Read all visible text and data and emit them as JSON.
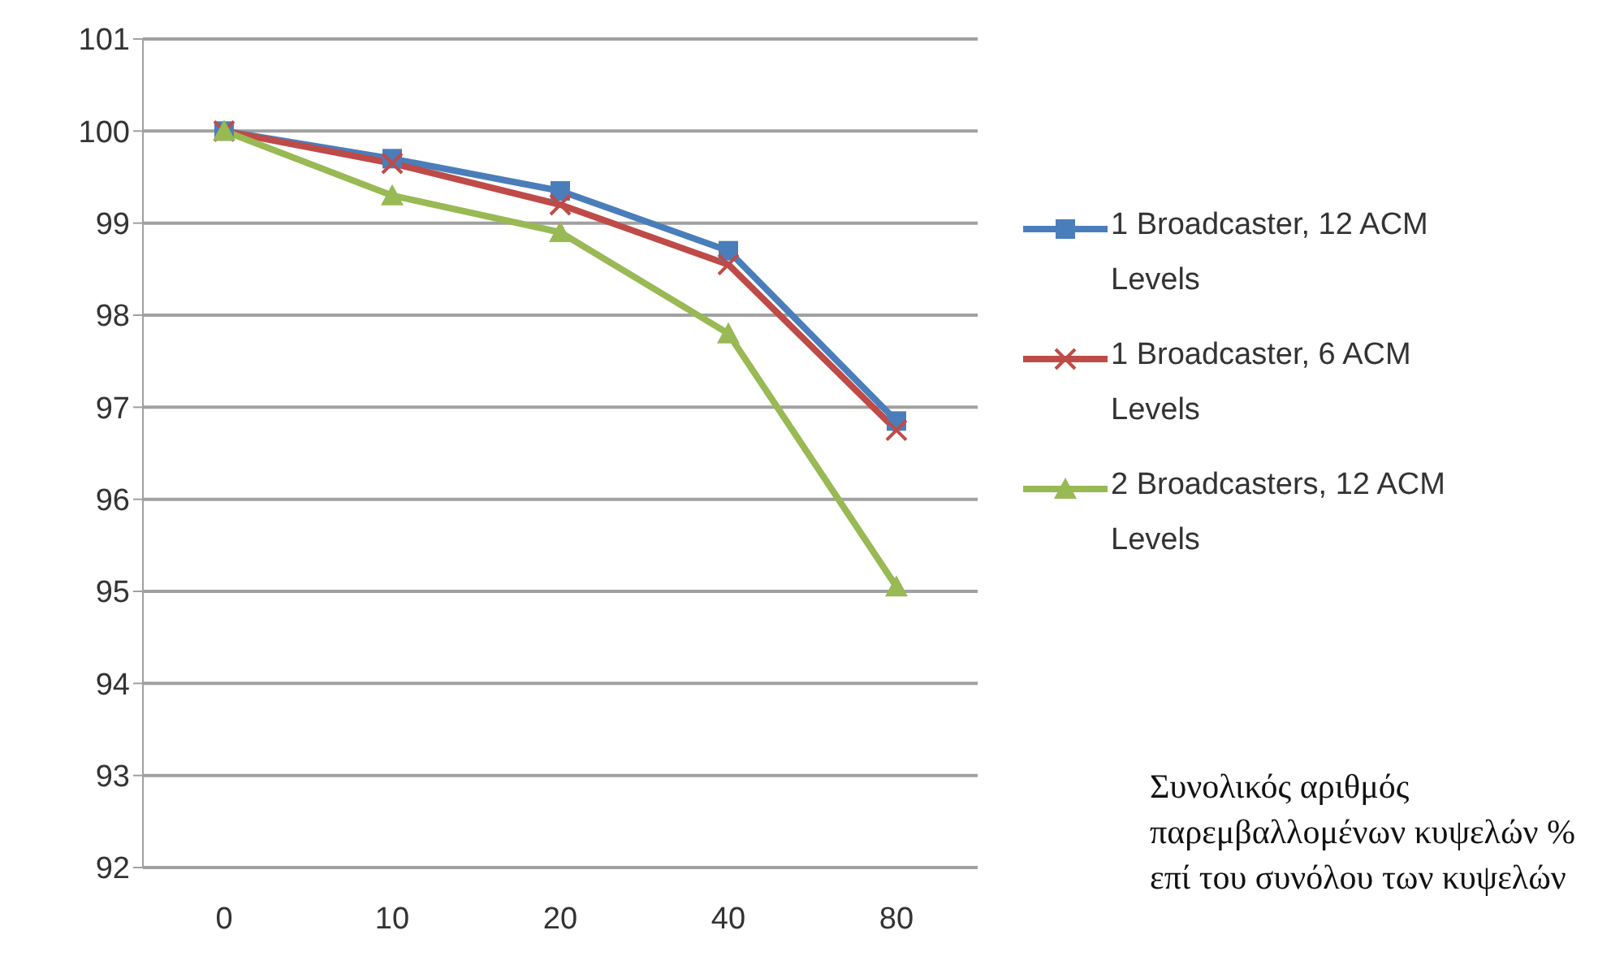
{
  "chart_data": {
    "type": "line",
    "categories": [
      "0",
      "10",
      "20",
      "40",
      "80"
    ],
    "series": [
      {
        "name": "1 Broadcaster, 12 ACM Levels",
        "color": "#4a7ebb",
        "marker": "square",
        "values": [
          100,
          99.7,
          99.35,
          98.7,
          96.85
        ]
      },
      {
        "name": "1 Broadcaster, 6 ACM Levels",
        "color": "#be4b48",
        "marker": "cross",
        "values": [
          100,
          99.65,
          99.2,
          98.55,
          96.75
        ]
      },
      {
        "name": "2 Broadcasters, 12 ACM Levels",
        "color": "#98b954",
        "marker": "triangle",
        "values": [
          100,
          99.3,
          98.9,
          97.8,
          95.05
        ]
      }
    ],
    "ylim": [
      92,
      101
    ],
    "yticks": [
      92,
      93,
      94,
      95,
      96,
      97,
      98,
      99,
      100,
      101
    ],
    "grid": "y",
    "legend": "right",
    "annotations": [
      "Συνολικός αριθμός παρεμβαλλομένων κυψελών % επί του συνόλου των κυψελών"
    ]
  }
}
